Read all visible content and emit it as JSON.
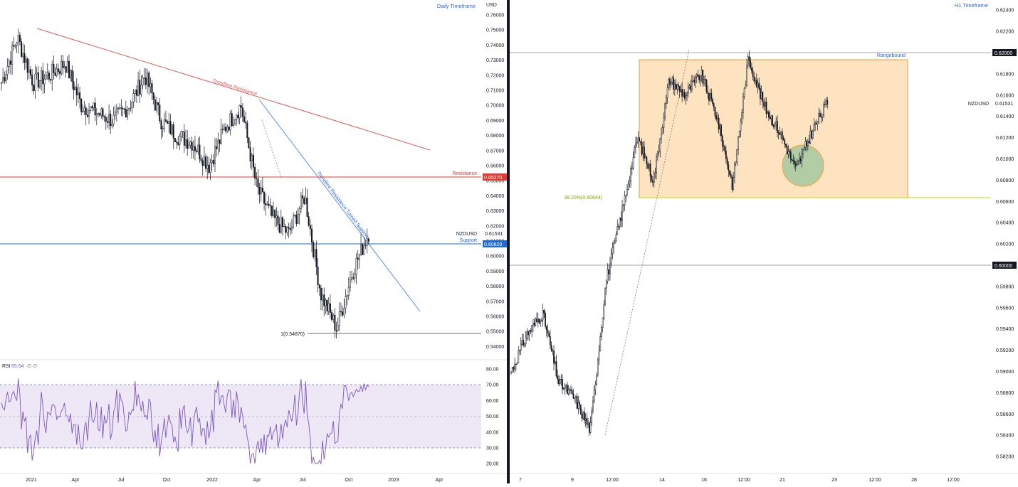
{
  "left_panel": {
    "timeframe": "Daily Timeframe",
    "currency": "USD",
    "symbol": "NZDUSD",
    "price_axis": {
      "ticks": [
        "0.76000",
        "0.75000",
        "0.74000",
        "0.73000",
        "0.72000",
        "0.71000",
        "0.70000",
        "0.69000",
        "0.68000",
        "0.67000",
        "0.66000",
        "0.65000",
        "0.64000",
        "0.63000",
        "0.62000",
        "0.61000",
        "0.60000",
        "0.59000",
        "0.58000",
        "0.57000",
        "0.56000",
        "0.55000",
        "0.54000"
      ],
      "current_price": "0.61531",
      "resistance_value": "0.65270",
      "support_value": "0.60820"
    },
    "labels": {
      "trendline_resistance": "Trendline Resistance",
      "trendline_support": "Trendline Resistance Turned Support",
      "resistance": "Resistance",
      "support": "Support",
      "fib": "1(0.54870)"
    },
    "rsi": {
      "label": "RSI",
      "value": "65.64",
      "extra": "∅  ∅",
      "ticks": [
        "80.00",
        "70.00",
        "60.00",
        "50.00",
        "40.00",
        "30.00",
        "20.00"
      ]
    },
    "x_axis": [
      "2021",
      "Apr",
      "Jul",
      "Oct",
      "2022",
      "Apr",
      "Jul",
      "Oct",
      "2023",
      "Apr"
    ]
  },
  "right_panel": {
    "timeframe": "H1 Timeframe",
    "symbol": "NZDUSD",
    "price_axis": {
      "ticks": [
        "0.62400",
        "0.62200",
        "0.61800",
        "0.61600",
        "0.61400",
        "0.61200",
        "0.61000",
        "0.60800",
        "0.60600",
        "0.60400",
        "0.60200",
        "0.59800",
        "0.59600",
        "0.59400",
        "0.59200",
        "0.59000",
        "0.58800",
        "0.58600",
        "0.58400",
        "0.58200"
      ],
      "current_price": "0.61531",
      "level_620": "0.62000",
      "level_600": "0.60000"
    },
    "labels": {
      "rangebound": "Rangebound",
      "fib": "38.20%(0.60644)"
    },
    "x_axis": [
      "7",
      "9",
      "12:00",
      "14",
      "16",
      "12:00",
      "21",
      "23",
      "12:00",
      "28",
      "12:00"
    ]
  },
  "colors": {
    "up": "#131722",
    "trend_resistance": "#e05a5a",
    "trend_support": "#2962ff",
    "resistance_line": "#e53935",
    "support_line": "#1e6bd6",
    "rsi_line": "#7e57c2",
    "rsi_band": "#ede7f6",
    "range_box": "#fde3c0",
    "range_box_border": "#f29a2e",
    "fib_line": "#c5d400",
    "circle_fill": "#a5c9a1",
    "axis_text": "#131722",
    "timeframe_text": "#2962ff"
  },
  "chart_data": [
    {
      "type": "candlestick",
      "title": "Daily Timeframe",
      "symbol": "NZDUSD",
      "ylim": [
        0.535,
        0.765
      ],
      "x": [
        "2021",
        "Apr",
        "Jul",
        "Oct",
        "2022",
        "Apr",
        "Jul",
        "Oct",
        "2023",
        "Apr"
      ],
      "series": [
        {
          "name": "NZDUSD",
          "close_path": [
            {
              "x": "2021-01",
              "y": 0.715
            },
            {
              "x": "2021-02",
              "y": 0.745
            },
            {
              "x": "2021-03",
              "y": 0.715
            },
            {
              "x": "2021-04",
              "y": 0.72
            },
            {
              "x": "2021-05",
              "y": 0.728
            },
            {
              "x": "2021-06",
              "y": 0.7
            },
            {
              "x": "2021-07",
              "y": 0.695
            },
            {
              "x": "2021-08",
              "y": 0.69
            },
            {
              "x": "2021-09",
              "y": 0.7
            },
            {
              "x": "2021-10",
              "y": 0.72
            },
            {
              "x": "2021-11",
              "y": 0.69
            },
            {
              "x": "2021-12",
              "y": 0.68
            },
            {
              "x": "2022-01",
              "y": 0.675
            },
            {
              "x": "2022-02",
              "y": 0.66
            },
            {
              "x": "2022-03",
              "y": 0.685
            },
            {
              "x": "2022-04",
              "y": 0.7
            },
            {
              "x": "2022-05",
              "y": 0.645
            },
            {
              "x": "2022-06",
              "y": 0.625
            },
            {
              "x": "2022-07",
              "y": 0.615
            },
            {
              "x": "2022-08",
              "y": 0.64
            },
            {
              "x": "2022-09",
              "y": 0.575
            },
            {
              "x": "2022-10",
              "y": 0.552
            },
            {
              "x": "2022-11",
              "y": 0.59
            },
            {
              "x": "2022-12",
              "y": 0.6153
            }
          ]
        }
      ],
      "levels": {
        "resistance": 0.6527,
        "support": 0.6082,
        "fib_1": 0.5487
      },
      "rsi": {
        "value": 65.64,
        "bands": [
          30,
          70
        ],
        "mid": 50
      }
    },
    {
      "type": "candlestick",
      "title": "H1 Timeframe",
      "symbol": "NZDUSD",
      "ylim": [
        0.581,
        0.6245
      ],
      "x": [
        "7",
        "9",
        "12:00",
        "14",
        "16",
        "12:00",
        "21",
        "23",
        "12:00",
        "28",
        "12:00"
      ],
      "series": [
        {
          "name": "NZDUSD",
          "close_path": [
            {
              "x": "7",
              "y": 0.59
            },
            {
              "x": "8",
              "y": 0.5935
            },
            {
              "x": "9",
              "y": 0.5955
            },
            {
              "x": "9 12:00",
              "y": 0.589
            },
            {
              "x": "10",
              "y": 0.5875
            },
            {
              "x": "12:00",
              "y": 0.5845
            },
            {
              "x": "11",
              "y": 0.5985
            },
            {
              "x": "13",
              "y": 0.605
            },
            {
              "x": "13b",
              "y": 0.612
            },
            {
              "x": "14",
              "y": 0.608
            },
            {
              "x": "15",
              "y": 0.6175
            },
            {
              "x": "16",
              "y": 0.616
            },
            {
              "x": "17",
              "y": 0.618
            },
            {
              "x": "18",
              "y": 0.614
            },
            {
              "x": "19",
              "y": 0.6075
            },
            {
              "x": "20",
              "y": 0.6195
            },
            {
              "x": "20b",
              "y": 0.615
            },
            {
              "x": "21",
              "y": 0.6125
            },
            {
              "x": "22",
              "y": 0.609
            },
            {
              "x": "22b",
              "y": 0.6125
            },
            {
              "x": "23",
              "y": 0.6153
            }
          ]
        }
      ],
      "levels": {
        "level_620": 0.62,
        "level_600": 0.6,
        "fib_382": 0.60644,
        "range_top": 0.6195,
        "range_bottom": 0.60644
      }
    }
  ]
}
